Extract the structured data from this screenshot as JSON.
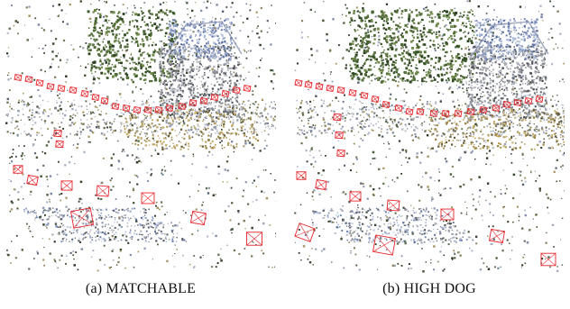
{
  "figure": {
    "panels": [
      {
        "id": "a",
        "label": "(a)",
        "name": "MATCHABLE"
      },
      {
        "id": "b",
        "label": "(b)",
        "name": "HIGH DOG"
      }
    ]
  }
}
